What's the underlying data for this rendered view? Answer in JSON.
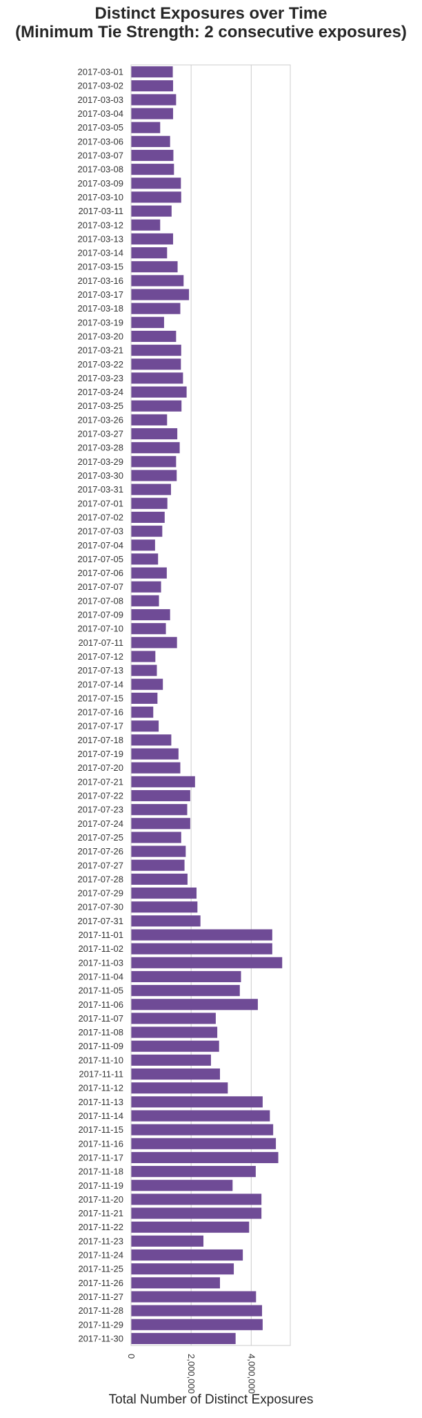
{
  "chart_data": {
    "type": "bar",
    "orientation": "horizontal",
    "title": "Distinct Exposures over Time",
    "subtitle": "(Minimum Tie Strength: 2 consecutive exposures)",
    "xlabel": "Total Number of Distinct Exposures",
    "ylabel": "",
    "xlim": [
      0,
      5300000
    ],
    "xticks": [
      0,
      2000000,
      4000000
    ],
    "xtick_labels": [
      "0",
      "2,000,000",
      "4,000,000"
    ],
    "grid": true,
    "bar_color": "#6f4b96",
    "categories": [
      "2017-03-01",
      "2017-03-02",
      "2017-03-03",
      "2017-03-04",
      "2017-03-05",
      "2017-03-06",
      "2017-03-07",
      "2017-03-08",
      "2017-03-09",
      "2017-03-10",
      "2017-03-11",
      "2017-03-12",
      "2017-03-13",
      "2017-03-14",
      "2017-03-15",
      "2017-03-16",
      "2017-03-17",
      "2017-03-18",
      "2017-03-19",
      "2017-03-20",
      "2017-03-21",
      "2017-03-22",
      "2017-03-23",
      "2017-03-24",
      "2017-03-25",
      "2017-03-26",
      "2017-03-27",
      "2017-03-28",
      "2017-03-29",
      "2017-03-30",
      "2017-03-31",
      "2017-07-01",
      "2017-07-02",
      "2017-07-03",
      "2017-07-04",
      "2017-07-05",
      "2017-07-06",
      "2017-07-07",
      "2017-07-08",
      "2017-07-09",
      "2017-07-10",
      "2017-07-11",
      "2017-07-12",
      "2017-07-13",
      "2017-07-14",
      "2017-07-15",
      "2017-07-16",
      "2017-07-17",
      "2017-07-18",
      "2017-07-19",
      "2017-07-20",
      "2017-07-21",
      "2017-07-22",
      "2017-07-23",
      "2017-07-24",
      "2017-07-25",
      "2017-07-26",
      "2017-07-27",
      "2017-07-28",
      "2017-07-29",
      "2017-07-30",
      "2017-07-31",
      "2017-11-01",
      "2017-11-02",
      "2017-11-03",
      "2017-11-04",
      "2017-11-05",
      "2017-11-06",
      "2017-11-07",
      "2017-11-08",
      "2017-11-09",
      "2017-11-10",
      "2017-11-11",
      "2017-11-12",
      "2017-11-13",
      "2017-11-14",
      "2017-11-15",
      "2017-11-16",
      "2017-11-17",
      "2017-11-18",
      "2017-11-19",
      "2017-11-20",
      "2017-11-21",
      "2017-11-22",
      "2017-11-23",
      "2017-11-24",
      "2017-11-25",
      "2017-11-26",
      "2017-11-27",
      "2017-11-28",
      "2017-11-29",
      "2017-11-30"
    ],
    "values": [
      1390000,
      1400000,
      1500000,
      1400000,
      970000,
      1300000,
      1410000,
      1430000,
      1660000,
      1670000,
      1350000,
      970000,
      1400000,
      1200000,
      1550000,
      1750000,
      1930000,
      1640000,
      1100000,
      1500000,
      1670000,
      1660000,
      1730000,
      1850000,
      1680000,
      1200000,
      1540000,
      1620000,
      1500000,
      1520000,
      1330000,
      1210000,
      1120000,
      1040000,
      800000,
      900000,
      1190000,
      1000000,
      930000,
      1300000,
      1160000,
      1530000,
      810000,
      860000,
      1060000,
      880000,
      740000,
      920000,
      1340000,
      1580000,
      1640000,
      2130000,
      1970000,
      1870000,
      1970000,
      1670000,
      1820000,
      1780000,
      1880000,
      2180000,
      2210000,
      2310000,
      4700000,
      4700000,
      5030000,
      3660000,
      3620000,
      4220000,
      2820000,
      2870000,
      2930000,
      2660000,
      2960000,
      3220000,
      4380000,
      4620000,
      4730000,
      4820000,
      4900000,
      4150000,
      3380000,
      4340000,
      4340000,
      3930000,
      2410000,
      3720000,
      3420000,
      2960000,
      4160000,
      4360000,
      4380000,
      3480000
    ]
  }
}
